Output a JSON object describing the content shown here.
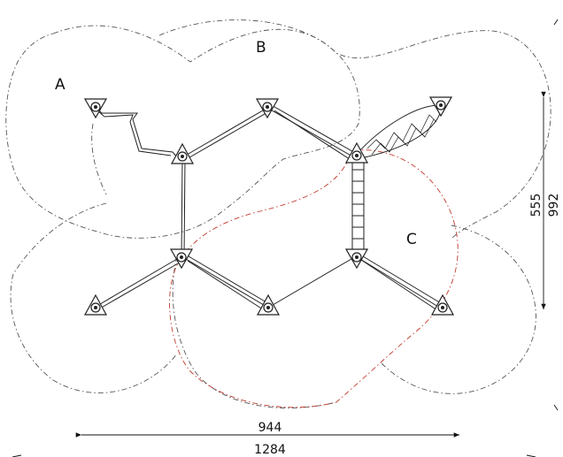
{
  "zones": {
    "a": "A",
    "b": "B",
    "c": "C"
  },
  "dimensions": {
    "width_inner": "944",
    "width_outer": "1284",
    "height_inner": "555",
    "height_outer": "992"
  },
  "colors": {
    "safety_zone": "#555555",
    "safety_zone_overlap": "#c0392b",
    "structure": "#222222"
  }
}
